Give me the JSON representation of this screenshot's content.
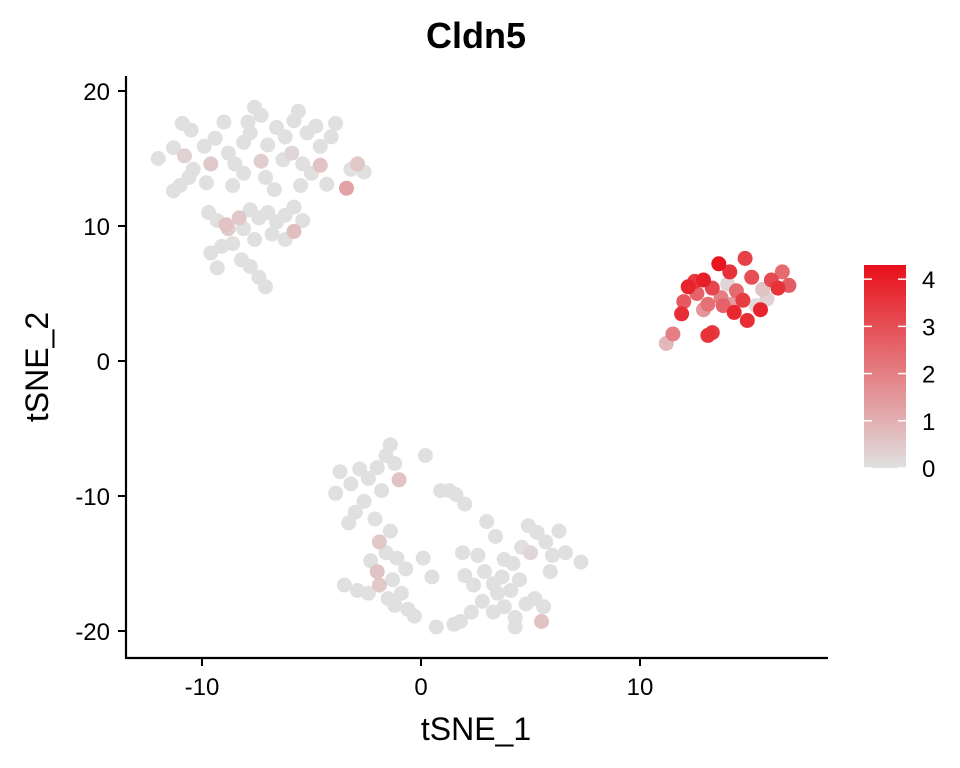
{
  "chart_data": {
    "type": "scatter",
    "title": "Cldn5",
    "xlabel": "tSNE_1",
    "ylabel": "tSNE_2",
    "xlim": [
      -13.5,
      18.5
    ],
    "ylim": [
      -22,
      21
    ],
    "x_ticks": [
      -10,
      0,
      10
    ],
    "x_tick_labels": [
      "-10",
      "0",
      "10"
    ],
    "y_ticks": [
      -20,
      -10,
      0,
      10,
      20
    ],
    "y_tick_labels": [
      "-20",
      "-10",
      "0",
      "10",
      "20"
    ],
    "grid": false,
    "legend_position": "right",
    "color_scale": {
      "min": 0,
      "max": 4.3,
      "low_color": "#e0e0e0",
      "high_color": "#e8101a",
      "ticks": [
        0,
        1,
        2,
        3,
        4
      ],
      "tick_labels": [
        "0",
        "1",
        "2",
        "3",
        "4"
      ]
    },
    "points": [
      {
        "x": -12.0,
        "y": 15.0,
        "v": 0
      },
      {
        "x": -11.3,
        "y": 15.8,
        "v": 0
      },
      {
        "x": -10.9,
        "y": 17.6,
        "v": 0
      },
      {
        "x": -10.5,
        "y": 17.1,
        "v": 0
      },
      {
        "x": -10.8,
        "y": 15.2,
        "v": 0.3
      },
      {
        "x": -10.4,
        "y": 14.2,
        "v": 0
      },
      {
        "x": -11.0,
        "y": 13.0,
        "v": 0
      },
      {
        "x": -10.6,
        "y": 13.6,
        "v": 0
      },
      {
        "x": -9.9,
        "y": 15.9,
        "v": 0
      },
      {
        "x": -9.4,
        "y": 16.5,
        "v": 0
      },
      {
        "x": -9.0,
        "y": 17.7,
        "v": 0
      },
      {
        "x": -9.6,
        "y": 14.6,
        "v": 0.5
      },
      {
        "x": -8.8,
        "y": 15.4,
        "v": 0
      },
      {
        "x": -8.5,
        "y": 14.6,
        "v": 0
      },
      {
        "x": -8.1,
        "y": 16.2,
        "v": 0
      },
      {
        "x": -7.9,
        "y": 17.7,
        "v": 0
      },
      {
        "x": -7.6,
        "y": 18.8,
        "v": 0
      },
      {
        "x": -7.3,
        "y": 18.2,
        "v": 0
      },
      {
        "x": -7.8,
        "y": 16.9,
        "v": 0
      },
      {
        "x": -7.0,
        "y": 16.0,
        "v": 0
      },
      {
        "x": -6.6,
        "y": 17.3,
        "v": 0
      },
      {
        "x": -6.2,
        "y": 16.6,
        "v": 0
      },
      {
        "x": -5.8,
        "y": 17.8,
        "v": 0
      },
      {
        "x": -5.6,
        "y": 18.5,
        "v": 0
      },
      {
        "x": -5.2,
        "y": 16.9,
        "v": 0
      },
      {
        "x": -4.8,
        "y": 17.4,
        "v": 0
      },
      {
        "x": -4.6,
        "y": 15.9,
        "v": 0
      },
      {
        "x": -4.1,
        "y": 16.6,
        "v": 0
      },
      {
        "x": -3.9,
        "y": 17.6,
        "v": 0
      },
      {
        "x": -5.9,
        "y": 15.4,
        "v": 0.2
      },
      {
        "x": -5.4,
        "y": 14.6,
        "v": 0
      },
      {
        "x": -6.3,
        "y": 14.9,
        "v": 0
      },
      {
        "x": -7.3,
        "y": 14.8,
        "v": 0.4
      },
      {
        "x": -7.1,
        "y": 13.6,
        "v": 0
      },
      {
        "x": -6.7,
        "y": 12.7,
        "v": 0
      },
      {
        "x": -5.5,
        "y": 13.0,
        "v": 0
      },
      {
        "x": -5.0,
        "y": 13.9,
        "v": 0
      },
      {
        "x": -4.3,
        "y": 13.1,
        "v": 0
      },
      {
        "x": -4.6,
        "y": 14.5,
        "v": 0.6
      },
      {
        "x": -3.4,
        "y": 12.8,
        "v": 1.3
      },
      {
        "x": -3.2,
        "y": 14.2,
        "v": 0
      },
      {
        "x": -2.9,
        "y": 14.6,
        "v": 0.5
      },
      {
        "x": -2.6,
        "y": 14.0,
        "v": 0
      },
      {
        "x": -9.8,
        "y": 13.2,
        "v": 0
      },
      {
        "x": -8.6,
        "y": 13.0,
        "v": 0
      },
      {
        "x": -8.1,
        "y": 13.9,
        "v": 0
      },
      {
        "x": -11.3,
        "y": 12.6,
        "v": 0
      },
      {
        "x": -9.7,
        "y": 11.0,
        "v": 0
      },
      {
        "x": -9.3,
        "y": 10.4,
        "v": 0
      },
      {
        "x": -8.8,
        "y": 9.8,
        "v": 0.4
      },
      {
        "x": -8.3,
        "y": 10.6,
        "v": 0.5
      },
      {
        "x": -7.8,
        "y": 11.2,
        "v": 0
      },
      {
        "x": -7.4,
        "y": 10.6,
        "v": 0
      },
      {
        "x": -7.0,
        "y": 11.0,
        "v": 0
      },
      {
        "x": -6.6,
        "y": 10.3,
        "v": 0
      },
      {
        "x": -6.2,
        "y": 10.8,
        "v": 0
      },
      {
        "x": -5.8,
        "y": 9.6,
        "v": 0.7
      },
      {
        "x": -5.4,
        "y": 10.4,
        "v": 0
      },
      {
        "x": -5.8,
        "y": 11.4,
        "v": 0
      },
      {
        "x": -6.8,
        "y": 9.4,
        "v": 0
      },
      {
        "x": -7.6,
        "y": 9.0,
        "v": 0
      },
      {
        "x": -8.1,
        "y": 9.8,
        "v": 0
      },
      {
        "x": -8.6,
        "y": 8.7,
        "v": 0
      },
      {
        "x": -9.6,
        "y": 8.0,
        "v": 0
      },
      {
        "x": -9.1,
        "y": 8.5,
        "v": 0
      },
      {
        "x": -8.2,
        "y": 7.5,
        "v": 0
      },
      {
        "x": -7.8,
        "y": 7.0,
        "v": 0
      },
      {
        "x": -9.3,
        "y": 6.9,
        "v": 0
      },
      {
        "x": -7.4,
        "y": 6.2,
        "v": 0
      },
      {
        "x": -7.1,
        "y": 5.5,
        "v": 0
      },
      {
        "x": -6.2,
        "y": 9.0,
        "v": 0
      },
      {
        "x": -8.9,
        "y": 10.1,
        "v": 0.6
      },
      {
        "x": 13.6,
        "y": 7.2,
        "v": 4.2
      },
      {
        "x": 14.1,
        "y": 6.6,
        "v": 3.6
      },
      {
        "x": 14.8,
        "y": 7.6,
        "v": 3.3
      },
      {
        "x": 15.1,
        "y": 6.2,
        "v": 3.0
      },
      {
        "x": 12.9,
        "y": 6.0,
        "v": 4.0
      },
      {
        "x": 12.5,
        "y": 5.9,
        "v": 3.5
      },
      {
        "x": 12.6,
        "y": 5.0,
        "v": 2.6
      },
      {
        "x": 12.2,
        "y": 5.5,
        "v": 3.9
      },
      {
        "x": 13.3,
        "y": 5.4,
        "v": 3.2
      },
      {
        "x": 13.7,
        "y": 4.7,
        "v": 2.0
      },
      {
        "x": 14.0,
        "y": 5.7,
        "v": 0.2
      },
      {
        "x": 14.4,
        "y": 5.2,
        "v": 2.4
      },
      {
        "x": 14.7,
        "y": 4.5,
        "v": 3.4
      },
      {
        "x": 15.3,
        "y": 4.1,
        "v": 0.1
      },
      {
        "x": 15.6,
        "y": 5.3,
        "v": 0.6
      },
      {
        "x": 16.0,
        "y": 6.0,
        "v": 3.1
      },
      {
        "x": 16.3,
        "y": 5.4,
        "v": 3.6
      },
      {
        "x": 16.5,
        "y": 6.6,
        "v": 2.4
      },
      {
        "x": 16.8,
        "y": 5.6,
        "v": 2.7
      },
      {
        "x": 13.1,
        "y": 4.2,
        "v": 2.3
      },
      {
        "x": 12.9,
        "y": 3.8,
        "v": 1.5
      },
      {
        "x": 13.8,
        "y": 4.1,
        "v": 2.6
      },
      {
        "x": 14.3,
        "y": 3.6,
        "v": 3.8
      },
      {
        "x": 14.9,
        "y": 3.0,
        "v": 3.7
      },
      {
        "x": 15.5,
        "y": 3.8,
        "v": 3.9
      },
      {
        "x": 13.3,
        "y": 2.1,
        "v": 3.5
      },
      {
        "x": 11.9,
        "y": 3.5,
        "v": 3.7
      },
      {
        "x": 11.5,
        "y": 2.0,
        "v": 2.0
      },
      {
        "x": 11.2,
        "y": 1.3,
        "v": 0.8
      },
      {
        "x": 13.1,
        "y": 1.9,
        "v": 3.6
      },
      {
        "x": 14.2,
        "y": 4.2,
        "v": 1.4
      },
      {
        "x": 15.8,
        "y": 4.6,
        "v": 0.3
      },
      {
        "x": 12.0,
        "y": 4.4,
        "v": 2.8
      },
      {
        "x": -3.7,
        "y": -8.2,
        "v": 0
      },
      {
        "x": -3.9,
        "y": -9.8,
        "v": 0
      },
      {
        "x": -3.2,
        "y": -9.1,
        "v": 0
      },
      {
        "x": -2.8,
        "y": -8.0,
        "v": 0
      },
      {
        "x": -2.4,
        "y": -8.7,
        "v": 0
      },
      {
        "x": -2.0,
        "y": -7.9,
        "v": 0
      },
      {
        "x": -1.6,
        "y": -7.0,
        "v": 0
      },
      {
        "x": -1.4,
        "y": -6.2,
        "v": 0
      },
      {
        "x": -1.2,
        "y": -7.6,
        "v": 0
      },
      {
        "x": -1.0,
        "y": -8.8,
        "v": 0.6
      },
      {
        "x": -1.8,
        "y": -9.6,
        "v": 0
      },
      {
        "x": -2.6,
        "y": -10.4,
        "v": 0
      },
      {
        "x": -3.0,
        "y": -11.2,
        "v": 0
      },
      {
        "x": -3.3,
        "y": -12.0,
        "v": 0
      },
      {
        "x": -2.1,
        "y": -11.7,
        "v": 0
      },
      {
        "x": -1.4,
        "y": -12.6,
        "v": 0
      },
      {
        "x": -1.9,
        "y": -13.4,
        "v": 0.5
      },
      {
        "x": -1.6,
        "y": -14.2,
        "v": 0
      },
      {
        "x": -2.3,
        "y": -14.8,
        "v": 0
      },
      {
        "x": -1.1,
        "y": -14.6,
        "v": 0
      },
      {
        "x": -0.7,
        "y": -15.4,
        "v": 0
      },
      {
        "x": -2.0,
        "y": -15.6,
        "v": 0.6
      },
      {
        "x": -1.3,
        "y": -16.2,
        "v": 0
      },
      {
        "x": -1.9,
        "y": -16.6,
        "v": 0.5
      },
      {
        "x": -2.4,
        "y": -17.2,
        "v": 0
      },
      {
        "x": -1.5,
        "y": -17.6,
        "v": 0
      },
      {
        "x": -0.9,
        "y": -17.2,
        "v": 0
      },
      {
        "x": -0.6,
        "y": -18.4,
        "v": 0
      },
      {
        "x": -0.3,
        "y": -18.9,
        "v": 0
      },
      {
        "x": -1.2,
        "y": -18.1,
        "v": 0
      },
      {
        "x": -2.9,
        "y": -17.0,
        "v": 0
      },
      {
        "x": -3.5,
        "y": -16.6,
        "v": 0
      },
      {
        "x": 0.1,
        "y": -14.6,
        "v": 0
      },
      {
        "x": 0.5,
        "y": -16.0,
        "v": 0
      },
      {
        "x": 0.2,
        "y": -7.0,
        "v": 0
      },
      {
        "x": 0.9,
        "y": -9.6,
        "v": 0
      },
      {
        "x": 1.3,
        "y": -9.6,
        "v": 0
      },
      {
        "x": 1.6,
        "y": -9.9,
        "v": 0
      },
      {
        "x": 2.0,
        "y": -10.6,
        "v": 0
      },
      {
        "x": 1.9,
        "y": -14.2,
        "v": 0
      },
      {
        "x": 2.6,
        "y": -14.4,
        "v": 0
      },
      {
        "x": 3.0,
        "y": -11.9,
        "v": 0
      },
      {
        "x": 3.4,
        "y": -13.0,
        "v": 0
      },
      {
        "x": 3.8,
        "y": -14.7,
        "v": 0
      },
      {
        "x": 4.2,
        "y": -15.0,
        "v": 0
      },
      {
        "x": 4.6,
        "y": -13.8,
        "v": 0
      },
      {
        "x": 4.9,
        "y": -12.2,
        "v": 0
      },
      {
        "x": 5.3,
        "y": -12.7,
        "v": 0
      },
      {
        "x": 5.7,
        "y": -13.4,
        "v": 0
      },
      {
        "x": 6.0,
        "y": -14.4,
        "v": 0
      },
      {
        "x": 6.3,
        "y": -12.6,
        "v": 0
      },
      {
        "x": 6.6,
        "y": -14.2,
        "v": 0
      },
      {
        "x": 5.0,
        "y": -14.2,
        "v": 0.2
      },
      {
        "x": 2.0,
        "y": -15.9,
        "v": 0
      },
      {
        "x": 2.4,
        "y": -16.6,
        "v": 0
      },
      {
        "x": 2.9,
        "y": -15.6,
        "v": 0
      },
      {
        "x": 3.3,
        "y": -16.5,
        "v": 0
      },
      {
        "x": 3.7,
        "y": -16.0,
        "v": 0
      },
      {
        "x": 4.1,
        "y": -17.0,
        "v": 0
      },
      {
        "x": 4.5,
        "y": -16.2,
        "v": 0
      },
      {
        "x": 2.8,
        "y": -17.8,
        "v": 0
      },
      {
        "x": 3.3,
        "y": -18.6,
        "v": 0
      },
      {
        "x": 3.8,
        "y": -18.2,
        "v": 0
      },
      {
        "x": 4.3,
        "y": -19.0,
        "v": 0
      },
      {
        "x": 4.8,
        "y": -18.0,
        "v": 0
      },
      {
        "x": 5.2,
        "y": -17.6,
        "v": 0
      },
      {
        "x": 5.6,
        "y": -18.2,
        "v": 0
      },
      {
        "x": 5.5,
        "y": -19.3,
        "v": 0.6
      },
      {
        "x": 4.3,
        "y": -19.7,
        "v": 0
      },
      {
        "x": 1.5,
        "y": -19.5,
        "v": 0
      },
      {
        "x": 1.8,
        "y": -19.3,
        "v": 0
      },
      {
        "x": 2.3,
        "y": -18.6,
        "v": 0
      },
      {
        "x": 3.5,
        "y": -17.2,
        "v": 0
      },
      {
        "x": 5.9,
        "y": -15.6,
        "v": 0
      },
      {
        "x": 7.3,
        "y": -14.9,
        "v": 0
      },
      {
        "x": 0.7,
        "y": -19.7,
        "v": 0
      }
    ]
  }
}
